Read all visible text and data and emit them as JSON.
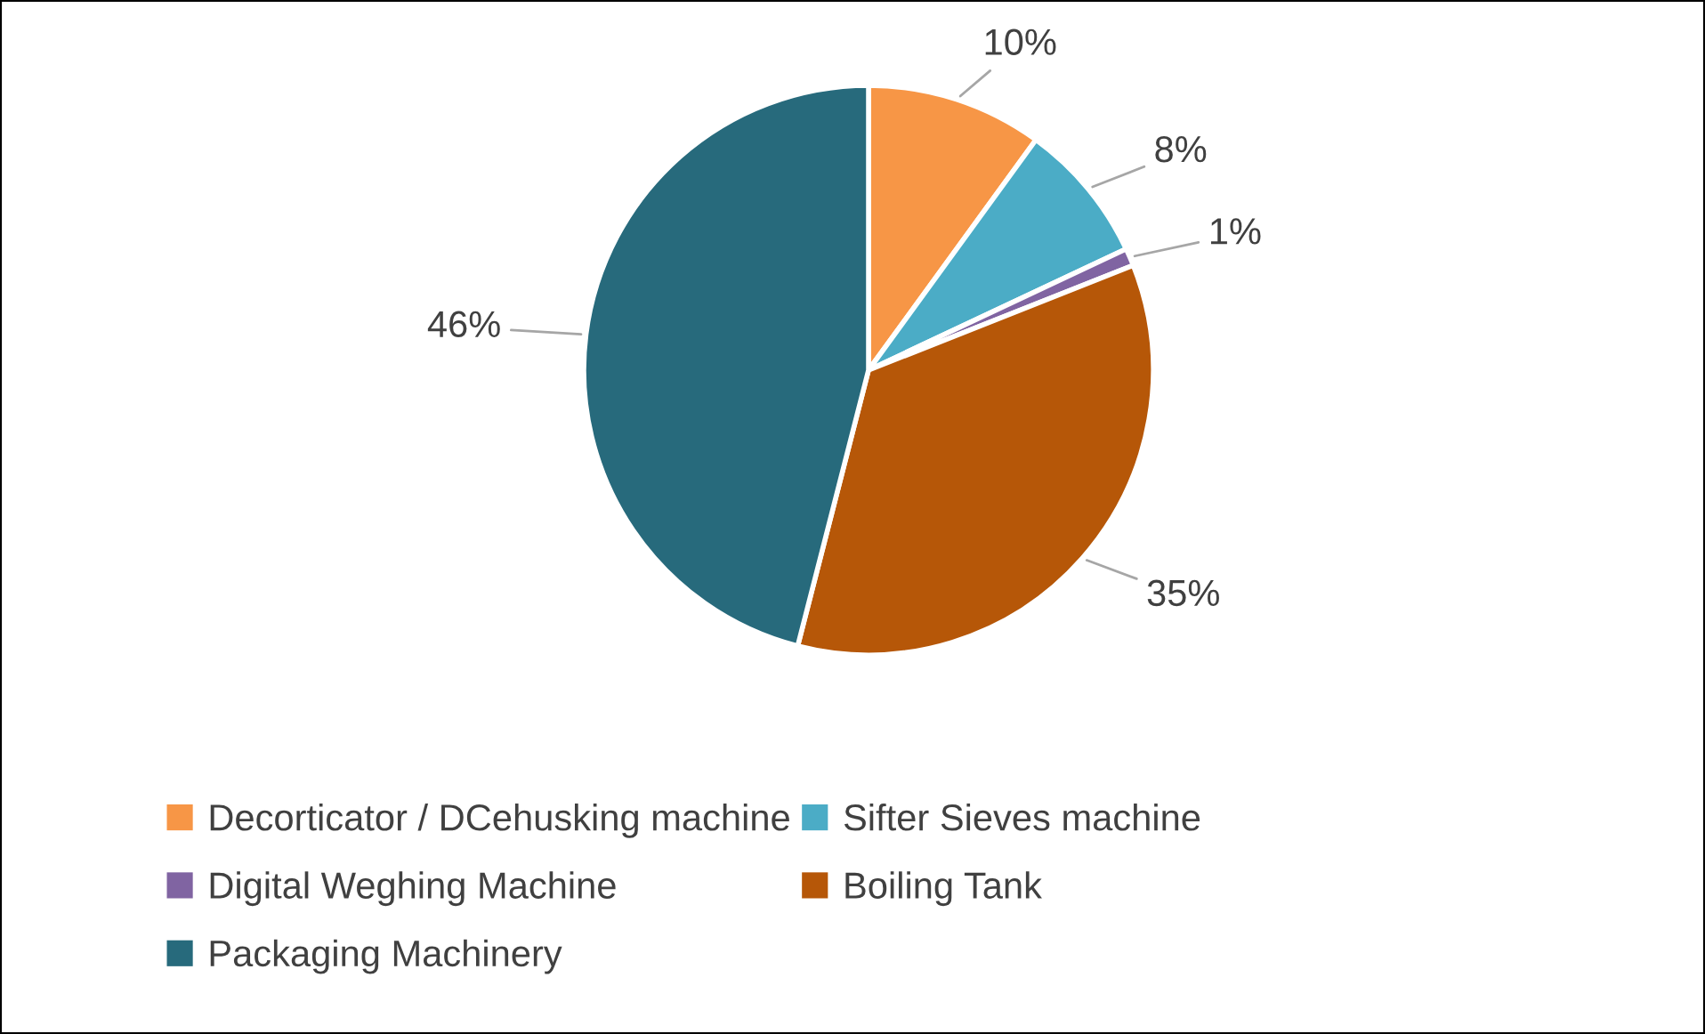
{
  "chart_data": {
    "type": "pie",
    "categories": [
      "Decorticator / DCehusking machine",
      "Sifter Sieves machine",
      "Digital Weghing Machine",
      "Boiling Tank",
      "Packaging Machinery"
    ],
    "values": [
      10,
      8,
      1,
      35,
      46
    ],
    "value_labels": [
      "10%",
      "8%",
      "1%",
      "35%",
      "46%"
    ],
    "colors": [
      "#f79646",
      "#4bacc6",
      "#8064a2",
      "#b65708",
      "#276a7c"
    ],
    "legend": "bottom"
  }
}
